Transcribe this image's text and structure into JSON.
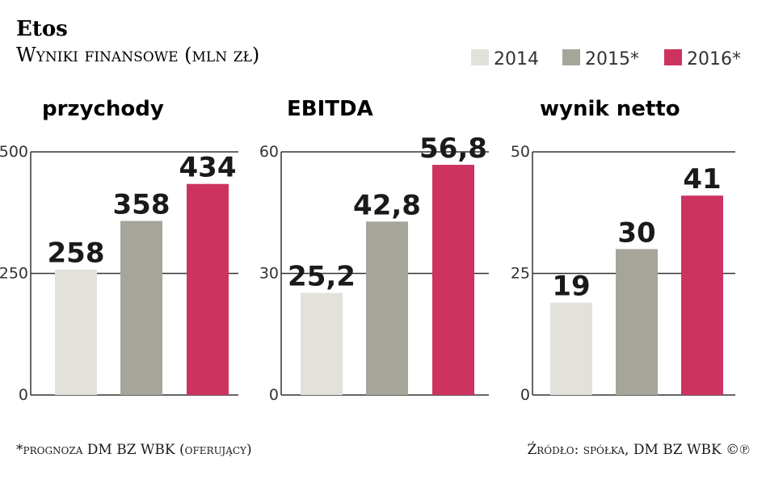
{
  "title": "Etos",
  "subtitle": "Wyniki finansowe (mln zł)",
  "legend": [
    {
      "label": "2014",
      "color": "#e2e1dc"
    },
    {
      "label": "2015*",
      "color": "#a6a59a"
    },
    {
      "label": "2016*",
      "color": "#cc3360"
    }
  ],
  "chart_data": [
    {
      "type": "bar",
      "title": "przychody",
      "categories": [
        "2014",
        "2015*",
        "2016*"
      ],
      "values": [
        258,
        358,
        434
      ],
      "value_labels": [
        "258",
        "358",
        "434"
      ],
      "ylim": [
        0,
        500
      ],
      "yticks": [
        0,
        250,
        500
      ],
      "ytick_labels": [
        "0",
        "250",
        "500"
      ],
      "grid": true
    },
    {
      "type": "bar",
      "title": "EBITDA",
      "categories": [
        "2014",
        "2015*",
        "2016*"
      ],
      "values": [
        25.2,
        42.8,
        56.8
      ],
      "value_labels": [
        "25,2",
        "42,8",
        "56,8"
      ],
      "ylim": [
        0,
        60
      ],
      "yticks": [
        0,
        30,
        60
      ],
      "ytick_labels": [
        "0",
        "30",
        "60"
      ],
      "grid": true
    },
    {
      "type": "bar",
      "title": "wynik netto",
      "categories": [
        "2014",
        "2015*",
        "2016*"
      ],
      "values": [
        19,
        30,
        41
      ],
      "value_labels": [
        "19",
        "30",
        "41"
      ],
      "ylim": [
        0,
        50
      ],
      "yticks": [
        0,
        25,
        50
      ],
      "ytick_labels": [
        "0",
        "25",
        "50"
      ],
      "grid": true
    }
  ],
  "footnote": "*prognoza DM BZ WBK (oferujący)",
  "source": "Źródło: spółka, DM BZ WBK ©℗"
}
